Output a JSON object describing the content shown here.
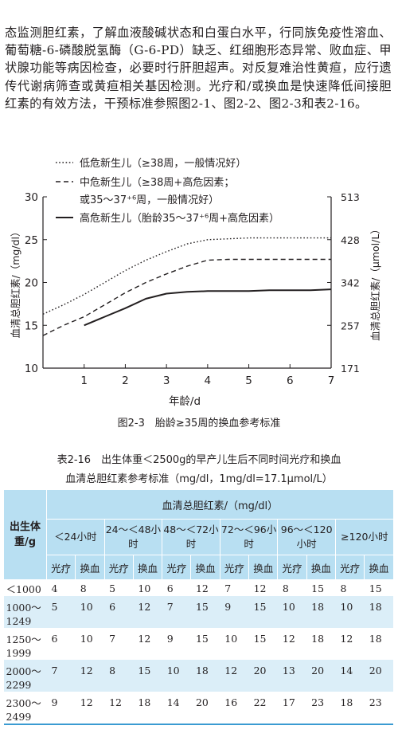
{
  "paragraph": "态监测胆红素，了解血液酸碱状态和白蛋白水平，行同族免疫性溶血、葡萄糖-6-磷酸脱氢酶（G-6-PD）缺乏、红细胞形态异常、败血症、甲状腺功能等病因检查，必要时行肝胆超声。对反复难治性黄疸，应行遗传代谢病筛查或黄疸相关基因检测。光疗和/或换血是快速降低间接胆红素的有效方法，干预标准参照图2-1、图2-2、图2-3和表2-16。",
  "chart_data": {
    "type": "line",
    "xlabel": "年龄/d",
    "ylabel_left": "血清总胆红素/（mg/dl）",
    "ylabel_right": "血清总胆红素/（μmol/L）",
    "x_ticks": [
      "1",
      "2",
      "3",
      "4",
      "5",
      "6",
      "7"
    ],
    "y_ticks_left": [
      "10",
      "15",
      "20",
      "25",
      "30"
    ],
    "y_ticks_right": [
      "171",
      "257",
      "342",
      "428",
      "513"
    ],
    "xlim": [
      0,
      7
    ],
    "ylim": [
      10,
      30
    ],
    "legend_position": "top",
    "series": [
      {
        "name": "低危新生儿（≥38周，一般情况好）",
        "style": "dotted",
        "x": [
          0,
          0.5,
          1,
          1.5,
          2,
          2.5,
          3,
          3.5,
          4,
          4.5,
          5,
          5.5,
          6,
          6.5,
          7
        ],
        "values": [
          16.3,
          17.4,
          18.6,
          20.0,
          21.4,
          22.6,
          23.6,
          24.5,
          25.0,
          25.1,
          25.2,
          25.2,
          25.2,
          25.2,
          25.2
        ]
      },
      {
        "name": "中危新生儿（≥38周+高危因素；或35～37⁺⁶周，一般情况好）",
        "style": "dashed",
        "x": [
          0,
          0.5,
          1,
          1.5,
          2,
          2.5,
          3,
          3.5,
          4,
          4.5,
          5,
          5.5,
          6,
          6.5,
          7
        ],
        "values": [
          13.8,
          15.0,
          16.0,
          17.4,
          18.8,
          20.0,
          21.0,
          21.9,
          22.6,
          22.7,
          22.7,
          22.7,
          22.7,
          22.7,
          22.7
        ]
      },
      {
        "name": "高危新生儿（胎龄35～37⁺⁶周+高危因素）",
        "style": "solid",
        "x": [
          1,
          1.5,
          2,
          2.5,
          3,
          3.5,
          4,
          4.5,
          5,
          5.5,
          6,
          6.5,
          7
        ],
        "values": [
          15.0,
          16.0,
          17.0,
          18.1,
          18.7,
          18.9,
          19.0,
          19.0,
          19.0,
          19.1,
          19.1,
          19.1,
          19.2
        ]
      }
    ]
  },
  "figure_caption": "图2-3　胎龄≥35周的换血参考标准",
  "table_title_1": "表2-16　出生体重＜2500g的早产儿生后不同时间光疗和换血",
  "table_title_2": "血清总胆红素参考标准（mg/dl，1mg/dl=17.1μmol/L）",
  "table": {
    "col_weight": "出生体重/g",
    "group_header": "血清总胆红素/（mg/dl）",
    "time_headers": [
      "＜24小时",
      "24～＜48小时",
      "48～＜72小时",
      "72～＜96小时",
      "96～＜120小时",
      "≥120小时"
    ],
    "sub_photo": "光疗",
    "sub_exchange": "换血",
    "rows": [
      {
        "weight": "＜1000",
        "values": [
          "4",
          "8",
          "5",
          "10",
          "6",
          "12",
          "7",
          "12",
          "8",
          "15",
          "8",
          "15"
        ]
      },
      {
        "weight": "1000～1249",
        "values": [
          "5",
          "10",
          "6",
          "12",
          "7",
          "15",
          "9",
          "15",
          "10",
          "18",
          "10",
          "18"
        ]
      },
      {
        "weight": "1250～1999",
        "values": [
          "6",
          "10",
          "7",
          "12",
          "9",
          "15",
          "10",
          "15",
          "12",
          "18",
          "12",
          "18"
        ]
      },
      {
        "weight": "2000～2299",
        "values": [
          "7",
          "12",
          "8",
          "15",
          "10",
          "18",
          "12",
          "20",
          "13",
          "20",
          "14",
          "20"
        ]
      },
      {
        "weight": "2300～2499",
        "values": [
          "9",
          "12",
          "12",
          "18",
          "14",
          "20",
          "16",
          "22",
          "17",
          "23",
          "18",
          "23"
        ]
      }
    ]
  },
  "colors": {
    "table_header_bg": "#b8dff2",
    "table_stripe_bg": "#dbeef8",
    "table_rule": "#3a9bd2",
    "text": "#231f20"
  }
}
